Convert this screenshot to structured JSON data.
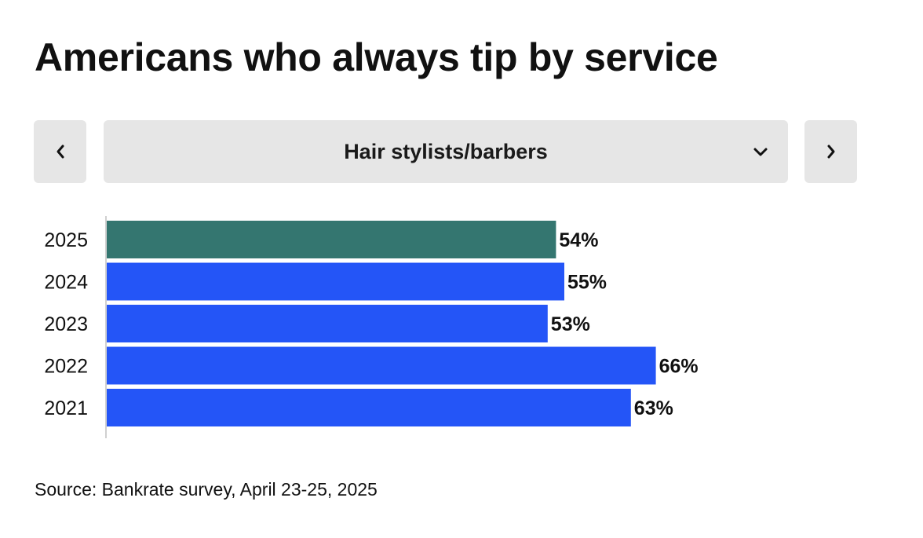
{
  "title": "Americans who always tip by service",
  "selector": {
    "selected": "Hair stylists/barbers"
  },
  "icons": {
    "prev": "chevron-left-icon",
    "next": "chevron-right-icon",
    "dropdown": "chevron-down-icon"
  },
  "colors": {
    "highlight": "#347670",
    "bar": "#2455f7",
    "button_bg": "#e6e6e6"
  },
  "chart_data": {
    "type": "bar",
    "orientation": "horizontal",
    "categories": [
      "2025",
      "2024",
      "2023",
      "2022",
      "2021"
    ],
    "values": [
      54,
      55,
      53,
      66,
      63
    ],
    "value_labels": [
      "54%",
      "55%",
      "53%",
      "66%",
      "63%"
    ],
    "unit": "%",
    "highlight_index": 0,
    "xlim": [
      0,
      100
    ],
    "grid": false
  },
  "source": "Source: Bankrate survey, April 23-25, 2025"
}
